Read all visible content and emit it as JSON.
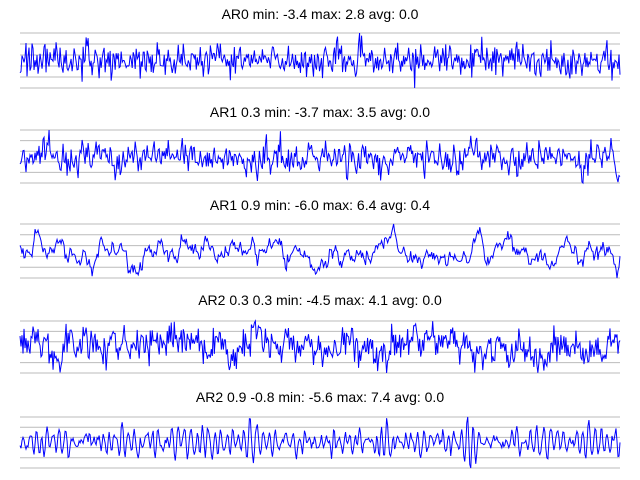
{
  "chart_data": [
    {
      "type": "line",
      "title": "AR0 min: -3.4 max: 2.8 avg: 0.0",
      "series": [
        {
          "values": []
        }
      ],
      "ylim": [
        -3.4,
        2.8
      ],
      "grid": "horizontal",
      "n_points": 600,
      "seed": 11,
      "phi": [],
      "colors": {
        "line": "#0000ff",
        "grid": "#bbbbbb"
      }
    },
    {
      "type": "line",
      "title": "AR1 0.3 min: -3.7 max: 3.5 avg: 0.0",
      "series": [
        {
          "values": []
        }
      ],
      "ylim": [
        -3.7,
        3.5
      ],
      "grid": "horizontal",
      "n_points": 600,
      "seed": 23,
      "phi": [
        0.3
      ],
      "colors": {
        "line": "#0000ff",
        "grid": "#bbbbbb"
      }
    },
    {
      "type": "line",
      "title": "AR1 0.9 min: -6.0 max: 6.4 avg: 0.4",
      "series": [
        {
          "values": []
        }
      ],
      "ylim": [
        -6.0,
        6.4
      ],
      "grid": "horizontal",
      "n_points": 600,
      "seed": 37,
      "phi": [
        0.9
      ],
      "colors": {
        "line": "#0000ff",
        "grid": "#bbbbbb"
      }
    },
    {
      "type": "line",
      "title": "AR2 0.3 0.3 min: -4.5 max: 4.1 avg: 0.0",
      "series": [
        {
          "values": []
        }
      ],
      "ylim": [
        -4.5,
        4.1
      ],
      "grid": "horizontal",
      "n_points": 600,
      "seed": 51,
      "phi": [
        0.3,
        0.3
      ],
      "colors": {
        "line": "#0000ff",
        "grid": "#bbbbbb"
      }
    },
    {
      "type": "line",
      "title": "AR2 0.9 -0.8 min: -5.6 max: 7.4 avg: 0.0",
      "series": [
        {
          "values": []
        }
      ],
      "ylim": [
        -5.6,
        7.4
      ],
      "grid": "horizontal",
      "n_points": 600,
      "seed": 73,
      "phi": [
        0.9,
        -0.8
      ],
      "colors": {
        "line": "#0000ff",
        "grid": "#bbbbbb"
      }
    }
  ]
}
